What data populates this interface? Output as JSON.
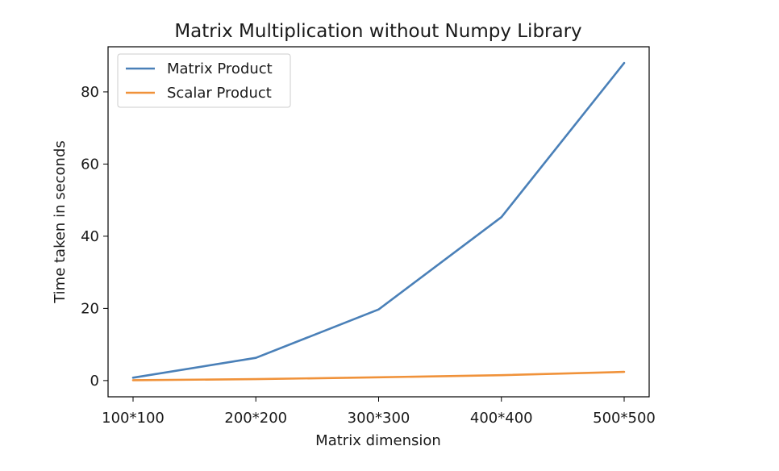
{
  "chart_data": {
    "type": "line",
    "title": "Matrix Multiplication without Numpy Library",
    "xlabel": "Matrix dimension",
    "ylabel": "Time taken in seconds",
    "categories": [
      "100*100",
      "200*200",
      "300*300",
      "400*400",
      "500*500"
    ],
    "yticks": [
      0,
      20,
      40,
      60,
      80
    ],
    "ylim": [
      -4.5,
      92.5
    ],
    "grid": false,
    "legend_position": "top-left",
    "series": [
      {
        "name": "Matrix Product",
        "color": "#4a80b8",
        "values": [
          0.8,
          6.3,
          19.7,
          45.3,
          88.0
        ]
      },
      {
        "name": "Scalar Product",
        "color": "#f0923a",
        "values": [
          0.1,
          0.4,
          0.9,
          1.5,
          2.4
        ]
      }
    ]
  }
}
